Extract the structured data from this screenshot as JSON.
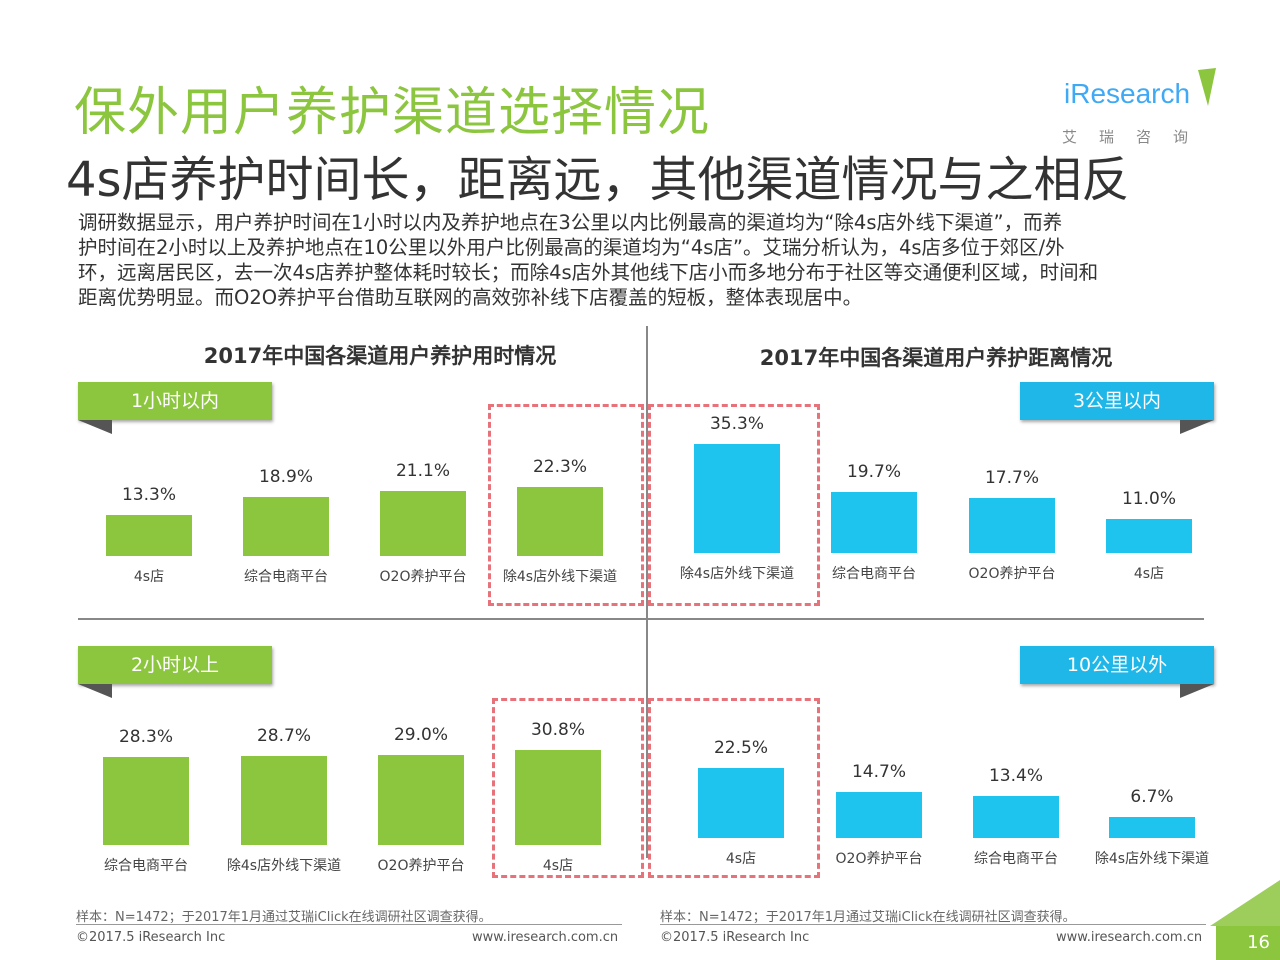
{
  "title": "保外用户养护渠道选择情况",
  "subtitle": "4s店养护时间长，距离远，其他渠道情况与之相反",
  "intro": "调研数据显示，用户养护时间在1小时以内及养护地点在3公里以内比例最高的渠道均为“除4s店外线下渠道”，而养\n护时间在2小时以上及养护地点在10公里以外用户比例最高的渠道均为“4s店”。艾瑞分析认为，4s店多位于郊区/外\n环，远离居民区，去一次4s店养护整体耗时较长；而除4s店外其他线下店小而多地分布于社区等交通便利区域，时间和\n距离优势明显。而O2O养护平台借助互联网的高效弥补线下店覆盖的短板，整体表现居中。",
  "logo": {
    "word": "iResearch",
    "cn": "艾瑞咨询"
  },
  "colors": {
    "green": "#8cc63f",
    "blue": "#1fc4ee",
    "highlight": "#e8727a"
  },
  "chart_data": [
    {
      "type": "bar",
      "title": "2017年中国各渠道用户养护用时情况",
      "tag": "1小时以内",
      "categories": [
        "4s店",
        "综合电商平台",
        "O2O养护平台",
        "除4s店外线下渠道"
      ],
      "values": [
        13.3,
        18.9,
        21.1,
        22.3
      ],
      "labels": [
        "13.3%",
        "18.9%",
        "21.1%",
        "22.3%"
      ],
      "highlight_index": 3
    },
    {
      "type": "bar",
      "title": "2017年中国各渠道用户养护距离情况",
      "tag": "3公里以内",
      "categories": [
        "除4s店外线下渠道",
        "综合电商平台",
        "O2O养护平台",
        "4s店"
      ],
      "values": [
        35.3,
        19.7,
        17.7,
        11.0
      ],
      "labels": [
        "35.3%",
        "19.7%",
        "17.7%",
        "11.0%"
      ],
      "highlight_index": 0
    },
    {
      "type": "bar",
      "tag": "2小时以上",
      "categories": [
        "综合电商平台",
        "除4s店外线下渠道",
        "O2O养护平台",
        "4s店"
      ],
      "values": [
        28.3,
        28.7,
        29.0,
        30.8
      ],
      "labels": [
        "28.3%",
        "28.7%",
        "29.0%",
        "30.8%"
      ],
      "highlight_index": 3
    },
    {
      "type": "bar",
      "tag": "10公里以外",
      "categories": [
        "4s店",
        "O2O养护平台",
        "综合电商平台",
        "除4s店外线下渠道"
      ],
      "values": [
        22.5,
        14.7,
        13.4,
        6.7
      ],
      "labels": [
        "22.5%",
        "14.7%",
        "13.4%",
        "6.7%"
      ],
      "highlight_index": 0
    }
  ],
  "footer": {
    "note_left": "样本：N=1472；于2017年1月通过艾瑞iClick在线调研社区调查获得。",
    "note_right": "样本：N=1472；于2017年1月通过艾瑞iClick在线调研社区调查获得。",
    "copyright_left": "©2017.5 iResearch Inc",
    "url_left": "www.iresearch.com.cn",
    "copyright_right": "©2017.5 iResearch Inc",
    "url_right": "www.iresearch.com.cn",
    "page": "16"
  }
}
